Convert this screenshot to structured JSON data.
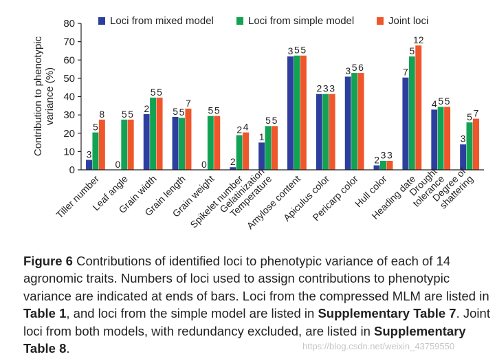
{
  "chart_data": {
    "type": "bar",
    "ylabel": "Contribution to phenotypic variance (%)",
    "ylim": [
      0,
      80
    ],
    "yticks": [
      0,
      10,
      20,
      30,
      40,
      50,
      60,
      70,
      80
    ],
    "legend_position": "top",
    "categories": [
      "Tiller number",
      "Leaf angle",
      "Grain width",
      "Grain length",
      "Grain weight",
      "Spikelet number",
      "Gelatinization Temperature",
      "Amylose content",
      "Apiculus color",
      "Pericarp color",
      "Hull color",
      "Heading date",
      "Drought tolerance",
      "Degree of shattering"
    ],
    "series": [
      {
        "name": "Loci from mixed model",
        "color": "#2d3f9e",
        "values": [
          5.5,
          0,
          30.5,
          29,
          0,
          1.5,
          15,
          62,
          41.5,
          51,
          2.5,
          50.5,
          33,
          14
        ],
        "labels": [
          "3",
          "0",
          "2",
          "5",
          "0",
          "2",
          "1",
          "3",
          "2",
          "3",
          "2",
          "7",
          "4",
          "3"
        ]
      },
      {
        "name": "Loci from simple model",
        "color": "#12a254",
        "values": [
          20.5,
          27.5,
          39.5,
          28.5,
          29.5,
          19,
          24,
          62.5,
          41.5,
          53,
          5,
          62,
          34.5,
          26
        ],
        "labels": [
          "5",
          "5",
          "5",
          "5",
          "5",
          "2",
          "5",
          "5",
          "3",
          "5",
          "3",
          "5",
          "5",
          "5"
        ]
      },
      {
        "name": "Joint loci",
        "color": "#f0562b",
        "values": [
          27.5,
          27.5,
          39.5,
          33.5,
          29.5,
          20.5,
          24,
          62.5,
          41.5,
          53,
          5,
          68,
          34.5,
          28
        ],
        "labels": [
          "8",
          "5",
          "5",
          "7",
          "5",
          "4",
          "5",
          "5",
          "3",
          "6",
          "3",
          "12",
          "5",
          "7"
        ]
      }
    ]
  },
  "caption": {
    "figure_label": "Figure 6",
    "text_1": " Contributions of identified loci to phenotypic variance of each of 14 agronomic traits. Numbers of loci used to assign contributions to phenotypic variance are indicated at ends of bars. Loci from the compressed MLM are listed in ",
    "ref_1": "Table 1",
    "text_2": ", and loci from the simple model are listed in ",
    "ref_2": "Supplementary Table 7",
    "text_3": ". Joint loci from both models, with redundancy excluded, are listed in ",
    "ref_3": "Supplementary Table 8",
    "text_4": "."
  },
  "watermark": "https://blog.csdn.net/weixin_43759550"
}
